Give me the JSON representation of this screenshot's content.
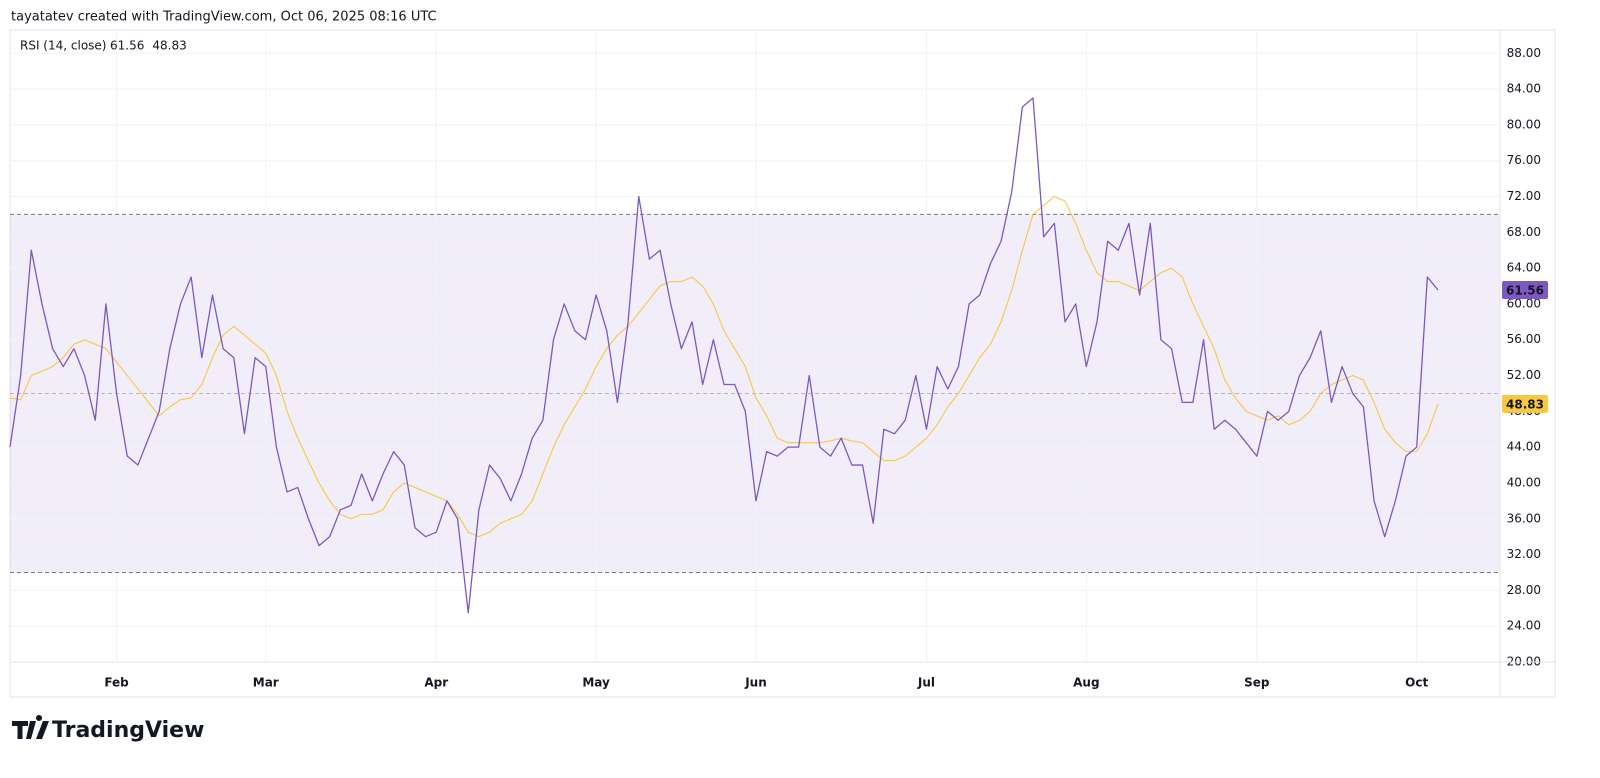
{
  "chart_data": {
    "type": "line",
    "attribution": "tayatatev created with TradingView.com, Oct 06, 2025 08:16 UTC",
    "title": "RSI (14, close)",
    "brand": "TradingView",
    "categories": [
      null,
      null,
      null,
      null,
      null,
      null,
      null,
      null,
      null,
      null,
      "Feb",
      null,
      null,
      null,
      null,
      null,
      null,
      null,
      null,
      null,
      null,
      null,
      null,
      null,
      "Mar",
      null,
      null,
      null,
      null,
      null,
      null,
      null,
      null,
      null,
      null,
      null,
      null,
      null,
      null,
      null,
      "Apr",
      null,
      null,
      null,
      null,
      null,
      null,
      null,
      null,
      null,
      null,
      null,
      null,
      null,
      null,
      "May",
      null,
      null,
      null,
      null,
      null,
      null,
      null,
      null,
      null,
      null,
      null,
      null,
      null,
      null,
      "Jun",
      null,
      null,
      null,
      null,
      null,
      null,
      null,
      null,
      null,
      null,
      null,
      null,
      null,
      null,
      null,
      "Jul",
      null,
      null,
      null,
      null,
      null,
      null,
      null,
      null,
      null,
      null,
      null,
      null,
      null,
      null,
      "Aug",
      null,
      null,
      null,
      null,
      null,
      null,
      null,
      null,
      null,
      null,
      null,
      null,
      null,
      null,
      null,
      "Sep",
      null,
      null,
      null,
      null,
      null,
      null,
      null,
      null,
      null,
      null,
      null,
      null,
      null,
      null,
      "Oct",
      null,
      null
    ],
    "series": [
      {
        "color": "#7e57c2",
        "values": [
          44,
          52,
          66,
          60,
          55,
          53,
          55,
          52,
          47,
          60,
          50,
          43,
          42,
          45,
          48,
          55,
          60,
          63,
          54,
          61,
          55,
          54,
          45.5,
          54,
          53,
          44,
          39,
          39.5,
          36,
          33,
          34,
          37,
          37.5,
          41,
          38,
          41,
          43.5,
          42,
          35,
          34,
          34.5,
          38,
          36,
          25.5,
          37,
          42,
          40.5,
          38,
          41,
          45,
          47,
          56,
          60,
          57,
          56,
          61,
          57,
          49,
          58,
          72,
          65,
          66,
          60,
          55,
          58,
          51,
          56,
          51,
          51,
          48,
          38,
          43.5,
          43,
          44,
          44,
          52,
          44,
          43,
          45,
          42,
          42,
          35.5,
          46,
          45.5,
          47,
          52,
          46,
          53,
          50.5,
          53,
          60,
          61,
          64.5,
          67,
          72.5,
          82,
          83,
          67.5,
          69,
          58,
          60,
          53,
          58,
          67,
          66,
          69,
          61,
          69,
          56,
          55,
          49,
          49,
          56,
          46,
          47,
          46,
          44.5,
          43,
          48,
          47,
          48,
          52,
          54,
          57,
          49,
          53,
          50,
          48.5,
          38,
          34,
          38,
          43,
          44,
          63,
          61.56
        ]
      },
      {
        "color": "#f7c843",
        "values": [
          49.5,
          49.3,
          52,
          52.5,
          53,
          54,
          55.5,
          56,
          55.5,
          55,
          53.5,
          52,
          50.5,
          49,
          47.5,
          48.5,
          49.3,
          49.5,
          51,
          54,
          56.5,
          57.5,
          56.5,
          55.5,
          54.5,
          52,
          48,
          45,
          42.5,
          40,
          38,
          36.5,
          36,
          36.5,
          36.5,
          37,
          39,
          40,
          39.5,
          39,
          38.5,
          38,
          36.5,
          34.5,
          34,
          34.5,
          35.5,
          36,
          36.5,
          38,
          41,
          44,
          46.5,
          48.5,
          50.5,
          53,
          55,
          56.5,
          57.5,
          59,
          60.5,
          62,
          62.5,
          62.5,
          63,
          62,
          60,
          57,
          55,
          53,
          49.5,
          47.5,
          45,
          44.5,
          44.5,
          44.5,
          44.5,
          44.7,
          45,
          44.7,
          44.5,
          43.5,
          42.5,
          42.5,
          43,
          44,
          45,
          46.5,
          48.5,
          50,
          52,
          54,
          55.5,
          58,
          61.5,
          66,
          70,
          71,
          72,
          71.5,
          69,
          66,
          63.5,
          62.5,
          62.5,
          62,
          61.5,
          62.5,
          63.5,
          64,
          63,
          60,
          57.5,
          55,
          51.5,
          49.5,
          48,
          47.5,
          47,
          47.5,
          46.5,
          47,
          48,
          50,
          51,
          51.5,
          52,
          51.5,
          49,
          46,
          44.5,
          43.5,
          43.5,
          45.5,
          48.83
        ]
      }
    ],
    "bands": {
      "upper": 70,
      "middle": 50,
      "lower": 30,
      "fill": "#7e57c2"
    },
    "ylim": [
      20,
      90.6
    ],
    "yticks": [
      {
        "value": 20,
        "label": "20.00"
      },
      {
        "value": 24,
        "label": "24.00"
      },
      {
        "value": 28,
        "label": "28.00"
      },
      {
        "value": 32,
        "label": "32.00"
      },
      {
        "value": 36,
        "label": "36.00"
      },
      {
        "value": 40,
        "label": "40.00"
      },
      {
        "value": 44,
        "label": "44.00"
      },
      {
        "value": 48,
        "label": "48.00"
      },
      {
        "value": 52,
        "label": "52.00"
      },
      {
        "value": 56,
        "label": "56.00"
      },
      {
        "value": 60,
        "label": "60.00"
      },
      {
        "value": 64,
        "label": "64.00"
      },
      {
        "value": 68,
        "label": "68.00"
      },
      {
        "value": 72,
        "label": "72.00"
      },
      {
        "value": 76,
        "label": "76.00"
      },
      {
        "value": 80,
        "label": "80.00"
      },
      {
        "value": 84,
        "label": "84.00"
      },
      {
        "value": 88,
        "label": "88.00"
      }
    ],
    "grid": true
  }
}
